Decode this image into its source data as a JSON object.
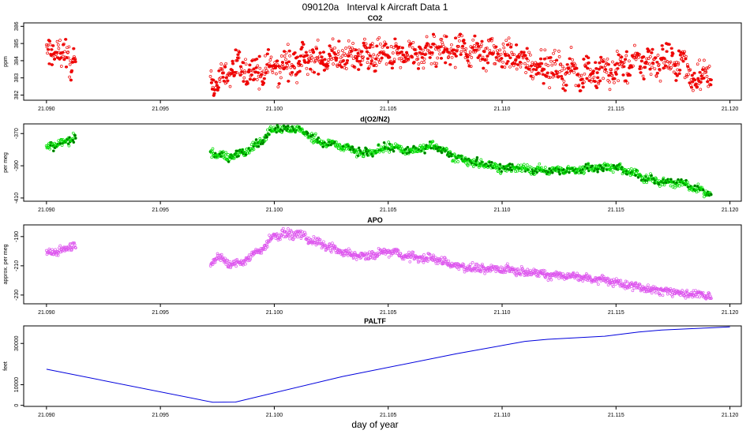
{
  "title": "090120a   Interval k Aircraft Data 1",
  "xlabel": "day of year",
  "colors": {
    "co2": "#ee0000",
    "o2n2": "#00dd00",
    "apo": "#dd55ee",
    "paltf": "#0000dd",
    "axis": "#000000"
  },
  "chart_data": [
    {
      "type": "scatter",
      "title": "CO2",
      "ylabel": "ppm",
      "xlim": [
        21.089,
        21.1205
      ],
      "ylim": [
        381.7,
        386.2
      ],
      "xticks": [
        "21.090",
        "21.095",
        "21.100",
        "21.105",
        "21.110",
        "21.115",
        "21.120"
      ],
      "xtick_values": [
        21.09,
        21.095,
        21.1,
        21.105,
        21.11,
        21.115,
        21.12
      ],
      "yticks": [
        "382",
        "383",
        "384",
        "385",
        "386"
      ],
      "ytick_values": [
        382,
        383,
        384,
        385,
        386
      ],
      "series": [
        {
          "x": [
            21.09,
            21.0905,
            21.091,
            21.0912,
            21.0975,
            21.098,
            21.099,
            21.1,
            21.101,
            21.102,
            21.103,
            21.104,
            21.105,
            21.106,
            21.107,
            21.108,
            21.109,
            21.11,
            21.111,
            21.112,
            21.113,
            21.114,
            21.115,
            21.116,
            21.117,
            21.118,
            21.1185,
            21.119
          ],
          "y": [
            384.3,
            384.6,
            384.1,
            383.9,
            382.7,
            383.5,
            383.3,
            383.6,
            383.9,
            384.1,
            384.2,
            384.4,
            384.3,
            384.2,
            384.5,
            384.7,
            384.6,
            384.3,
            384.0,
            383.6,
            383.4,
            383.2,
            383.5,
            383.9,
            384.0,
            383.8,
            382.8,
            383.5
          ]
        }
      ]
    },
    {
      "type": "scatter",
      "title": "d(O2/N2)",
      "ylabel": "per meg",
      "xlim": [
        21.089,
        21.1205
      ],
      "ylim": [
        -412,
        -364
      ],
      "xticks": [
        "21.090",
        "21.095",
        "21.100",
        "21.105",
        "21.110",
        "21.115",
        "21.120"
      ],
      "xtick_values": [
        21.09,
        21.095,
        21.1,
        21.105,
        21.11,
        21.115,
        21.12
      ],
      "yticks": [
        "-410",
        "-390",
        "-370"
      ],
      "ytick_values": [
        -410,
        -390,
        -370
      ],
      "series": [
        {
          "x": [
            21.09,
            21.0905,
            21.091,
            21.0912,
            21.0972,
            21.0975,
            21.098,
            21.0985,
            21.099,
            21.0995,
            21.1,
            21.101,
            21.102,
            21.103,
            21.104,
            21.105,
            21.106,
            21.107,
            21.108,
            21.109,
            21.11,
            21.111,
            21.112,
            21.113,
            21.114,
            21.115,
            21.116,
            21.117,
            21.118,
            21.119
          ],
          "y": [
            -378,
            -377,
            -374,
            -372,
            -381,
            -383,
            -385,
            -382,
            -380,
            -373,
            -367,
            -367,
            -375,
            -378,
            -383,
            -378,
            -381,
            -377,
            -385,
            -389,
            -391,
            -392,
            -393,
            -393,
            -391,
            -391,
            -396,
            -400,
            -401,
            -407
          ]
        }
      ]
    },
    {
      "type": "scatter",
      "title": "APO",
      "ylabel": "approx. per meg",
      "xlim": [
        21.089,
        21.1205
      ],
      "ylim": [
        -236,
        -182
      ],
      "xticks": [
        "21.090",
        "21.095",
        "21.100",
        "21.105",
        "21.110",
        "21.115",
        "21.120"
      ],
      "xtick_values": [
        21.09,
        21.095,
        21.1,
        21.105,
        21.11,
        21.115,
        21.12
      ],
      "yticks": [
        "-230",
        "-210",
        "-190"
      ],
      "ytick_values": [
        -230,
        -210,
        -190
      ],
      "series": [
        {
          "x": [
            21.09,
            21.0905,
            21.091,
            21.0912,
            21.0972,
            21.0975,
            21.098,
            21.0985,
            21.099,
            21.0995,
            21.1,
            21.101,
            21.102,
            21.103,
            21.104,
            21.105,
            21.106,
            21.107,
            21.108,
            21.109,
            21.11,
            21.111,
            21.112,
            21.113,
            21.114,
            21.115,
            21.116,
            21.117,
            21.118,
            21.119
          ],
          "y": [
            -201,
            -200,
            -197,
            -196,
            -209,
            -203,
            -209,
            -208,
            -203,
            -198,
            -189,
            -188,
            -195,
            -201,
            -204,
            -200,
            -204,
            -205,
            -210,
            -212,
            -212,
            -214,
            -216,
            -217,
            -219,
            -221,
            -225,
            -227,
            -229,
            -230
          ]
        }
      ]
    },
    {
      "type": "line",
      "title": "PALTF",
      "ylabel": "feet",
      "xlim": [
        21.089,
        21.1205
      ],
      "ylim": [
        -500,
        38500
      ],
      "xticks": [
        "21.090",
        "21.095",
        "21.100",
        "21.105",
        "21.110",
        "21.115",
        "21.120"
      ],
      "xtick_values": [
        21.09,
        21.095,
        21.1,
        21.105,
        21.11,
        21.115,
        21.12
      ],
      "yticks": [
        "0",
        "10000",
        "30000"
      ],
      "ytick_values": [
        0,
        10000,
        30000
      ],
      "series": [
        {
          "x": [
            21.09,
            21.0973,
            21.0983,
            21.103,
            21.108,
            21.111,
            21.112,
            21.1145,
            21.116,
            21.117,
            21.119,
            21.12
          ],
          "y": [
            17500,
            1500,
            1600,
            14000,
            25000,
            31000,
            32000,
            33500,
            35500,
            36500,
            37500,
            38000
          ]
        }
      ]
    }
  ]
}
